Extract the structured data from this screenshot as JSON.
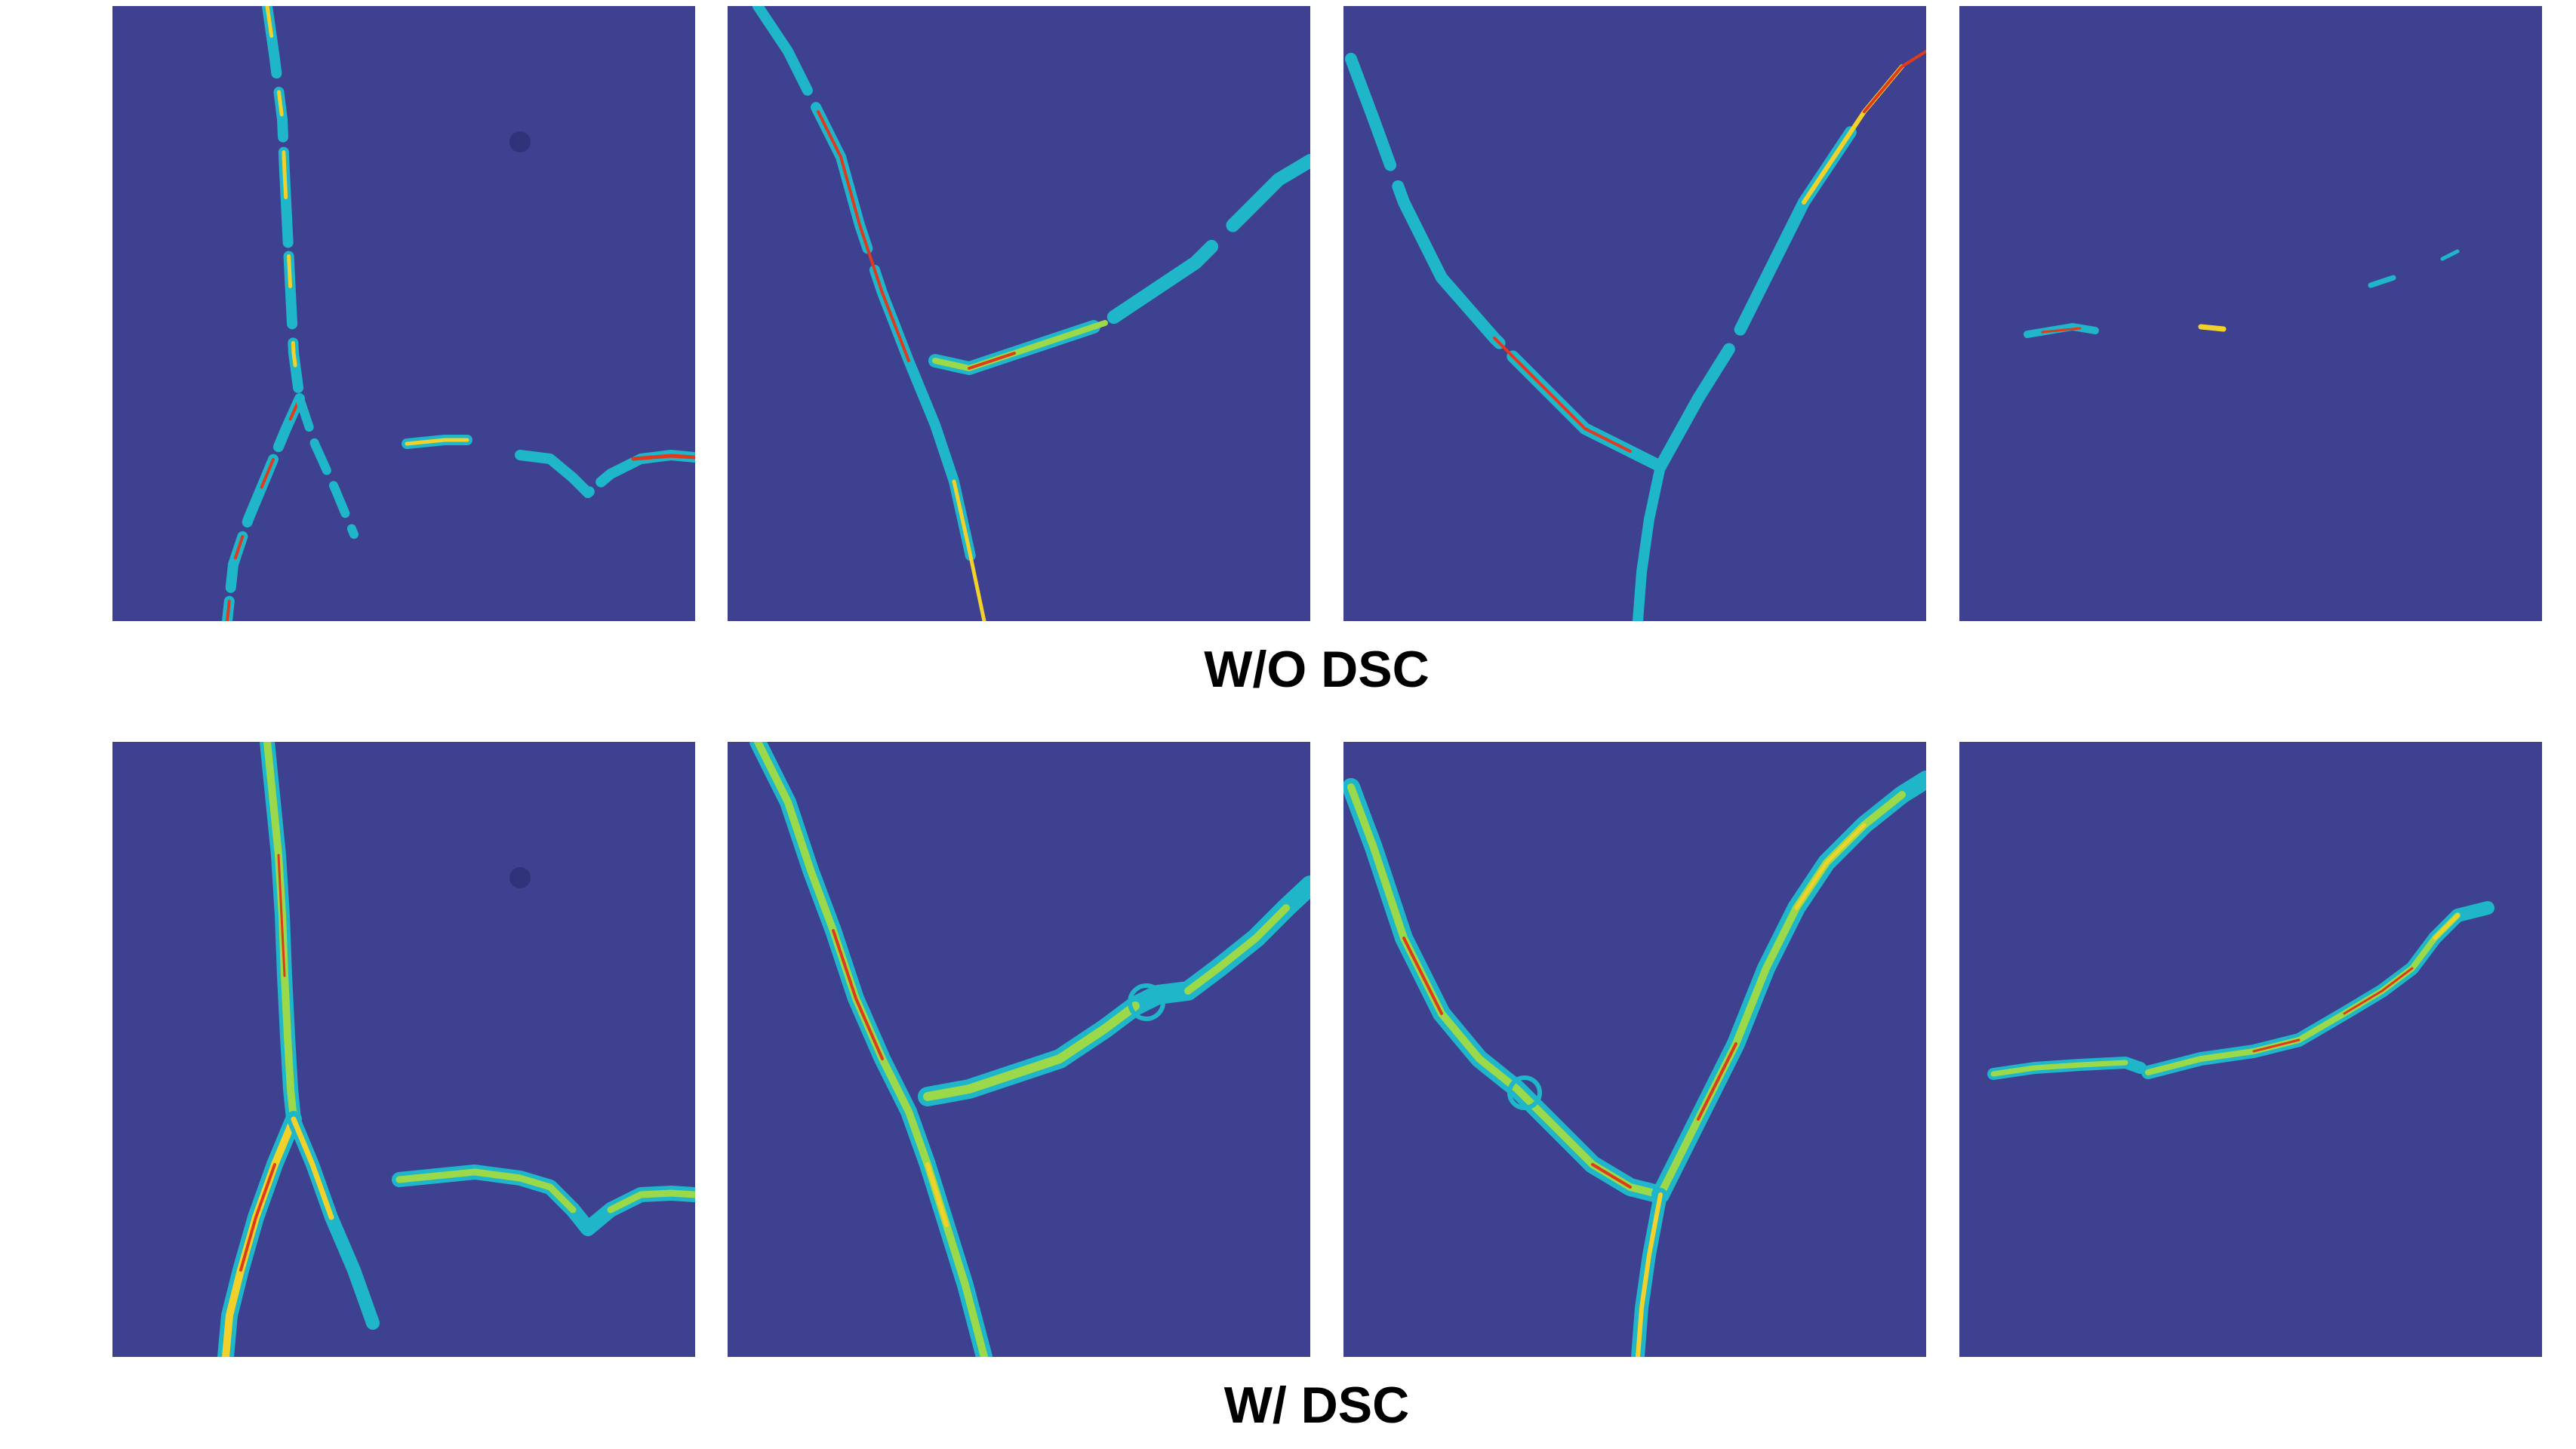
{
  "rows": [
    {
      "label": "W/O DSC"
    },
    {
      "label": "W/ DSC"
    }
  ],
  "colors": {
    "background": "#ffffff",
    "surface": "#3d4190",
    "surface_dark": "#30347e",
    "crack_cold": "#1fb6c9",
    "crack_mid": "#9bd94a",
    "crack_warm": "#f2d12a",
    "crack_hot": "#e03a1c"
  }
}
